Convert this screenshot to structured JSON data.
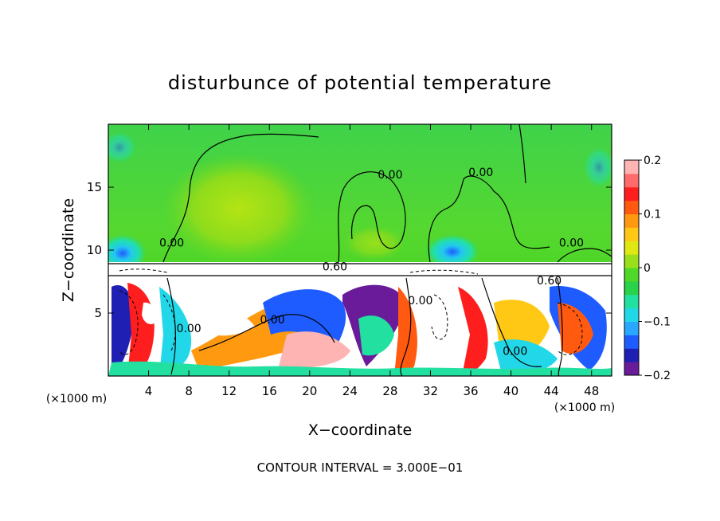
{
  "chart_data": {
    "type": "heatmap",
    "title": "disturbunce of potential temperature",
    "xlabel": "X−coordinate",
    "ylabel": "Z−coordinate",
    "x_unit_label": "(×1000 m)",
    "x_unit_label_right": "(×1000 m)",
    "xlim": [
      0,
      50
    ],
    "ylim": [
      0,
      20
    ],
    "x_ticks": [
      4,
      8,
      12,
      16,
      20,
      24,
      28,
      32,
      36,
      40,
      44,
      48
    ],
    "y_ticks": [
      5,
      10,
      15
    ],
    "footer": "CONTOUR INTERVAL = 3.000E−01",
    "colorbar": {
      "range": [
        -0.2,
        0.2
      ],
      "tick_values": [
        0.2,
        0.1,
        0,
        -0.1,
        -0.2
      ],
      "tick_labels": [
        "0.2",
        "0.1",
        "0",
        "−0.1",
        "−0.2"
      ],
      "colors": [
        "#6a1b9a",
        "#1f1fb4",
        "#1e5cff",
        "#2aa8ff",
        "#22d8e8",
        "#22e0a0",
        "#2ad24a",
        "#4fd828",
        "#9ae01a",
        "#e0e814",
        "#ffc814",
        "#ff9a10",
        "#ff5a10",
        "#ff1e1e",
        "#ff6a6a",
        "#ffb4b4"
      ]
    },
    "contour_labels": [
      {
        "text": "0.00",
        "x": 6.3,
        "z": 10.6
      },
      {
        "text": "0.00",
        "x": 28.0,
        "z": 16.0
      },
      {
        "text": "0.00",
        "x": 37.0,
        "z": 16.2
      },
      {
        "text": "0.00",
        "x": 46.0,
        "z": 10.6
      },
      {
        "text": "0.60",
        "x": 22.5,
        "z": 8.7
      },
      {
        "text": "0.60",
        "x": 43.8,
        "z": 7.6
      },
      {
        "text": "0.00",
        "x": 31.0,
        "z": 6.0
      },
      {
        "text": "0.00",
        "x": 8.0,
        "z": 3.8
      },
      {
        "text": "0.00",
        "x": 16.3,
        "z": 4.5
      },
      {
        "text": "0.00",
        "x": 40.4,
        "z": 2.0
      }
    ],
    "regions": {
      "upper_layer": "disturbance near 0 (green), slight positive band around x 12-22 km",
      "inversion": "saturated white band near z 8-9 km",
      "lower_layer": "strongly mixed positive and negative anomalies below z 8 km"
    }
  }
}
